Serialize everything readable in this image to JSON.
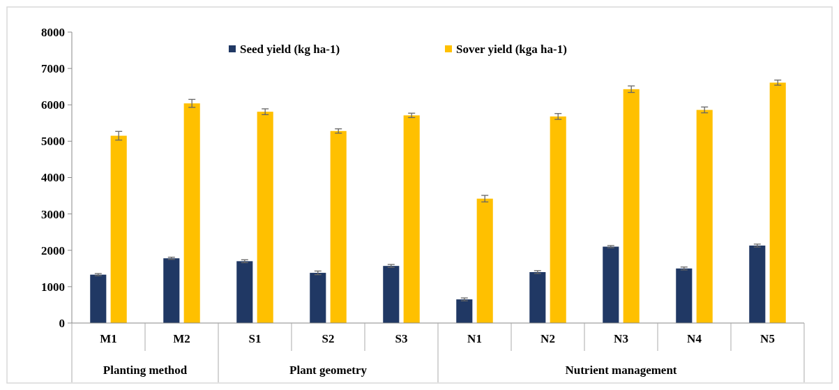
{
  "chart_data": {
    "type": "bar",
    "categories": [
      "M1",
      "M2",
      "S1",
      "S2",
      "S3",
      "N1",
      "N2",
      "N3",
      "N4",
      "N5"
    ],
    "series": [
      {
        "name": "Seed yield (kg ha-1)",
        "color": "#203864",
        "values": [
          1330,
          1780,
          1700,
          1380,
          1570,
          650,
          1400,
          2100,
          1500,
          2130
        ],
        "errors": [
          30,
          30,
          40,
          50,
          40,
          40,
          40,
          30,
          40,
          40
        ]
      },
      {
        "name": "Sover yield (kga ha-1)",
        "color": "#ffc000",
        "values": [
          5150,
          6040,
          5810,
          5280,
          5710,
          3420,
          5680,
          6430,
          5860,
          6610
        ],
        "errors": [
          120,
          110,
          80,
          60,
          60,
          90,
          80,
          90,
          80,
          70
        ]
      }
    ],
    "ylim": [
      0,
      8000
    ],
    "yticks": [
      0,
      1000,
      2000,
      3000,
      4000,
      5000,
      6000,
      7000,
      8000
    ],
    "grid": false,
    "legend": "top",
    "annotations": [
      "Planting method",
      "Plant geometry",
      "Nutrient management"
    ]
  }
}
